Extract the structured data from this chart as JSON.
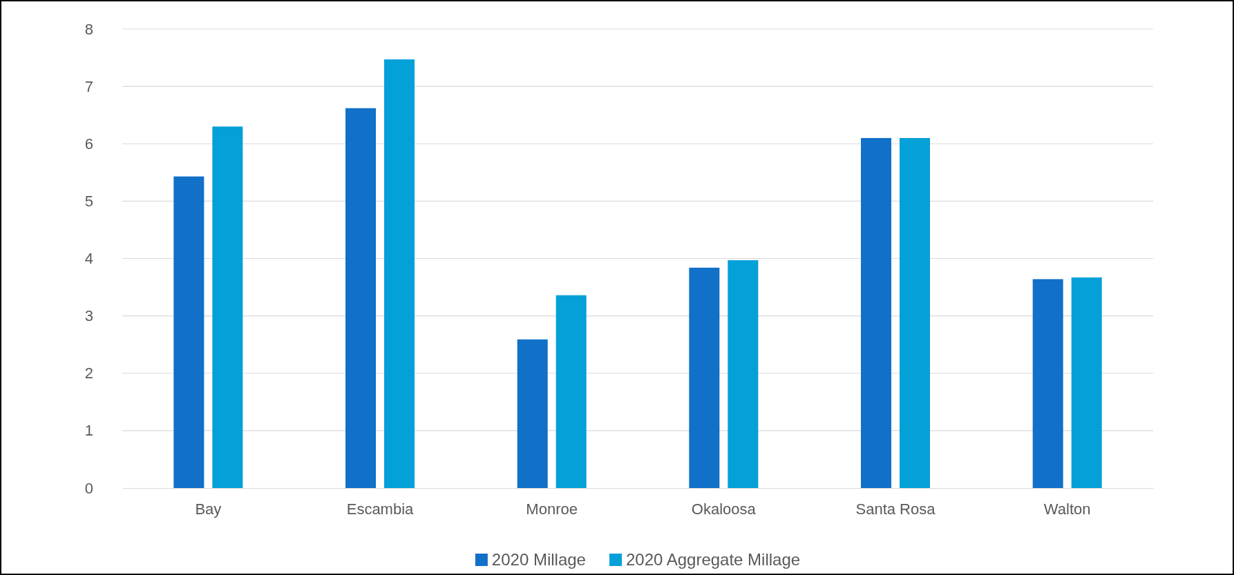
{
  "chart_data": {
    "type": "bar",
    "categories": [
      "Bay",
      "Escambia",
      "Monroe",
      "Okaloosa",
      "Santa Rosa",
      "Walton"
    ],
    "series": [
      {
        "name": "2020 Millage",
        "color": "#1170c8",
        "values": [
          5.43,
          6.62,
          2.59,
          3.84,
          6.1,
          3.64
        ]
      },
      {
        "name": "2020 Aggregate Millage",
        "color": "#04a0d8",
        "values": [
          6.3,
          7.47,
          3.36,
          3.97,
          6.1,
          3.67
        ]
      }
    ],
    "ylim": [
      0,
      8
    ],
    "yticks": [
      0,
      1,
      2,
      3,
      4,
      5,
      6,
      7,
      8
    ],
    "grid": "y",
    "legend": "bottom"
  }
}
